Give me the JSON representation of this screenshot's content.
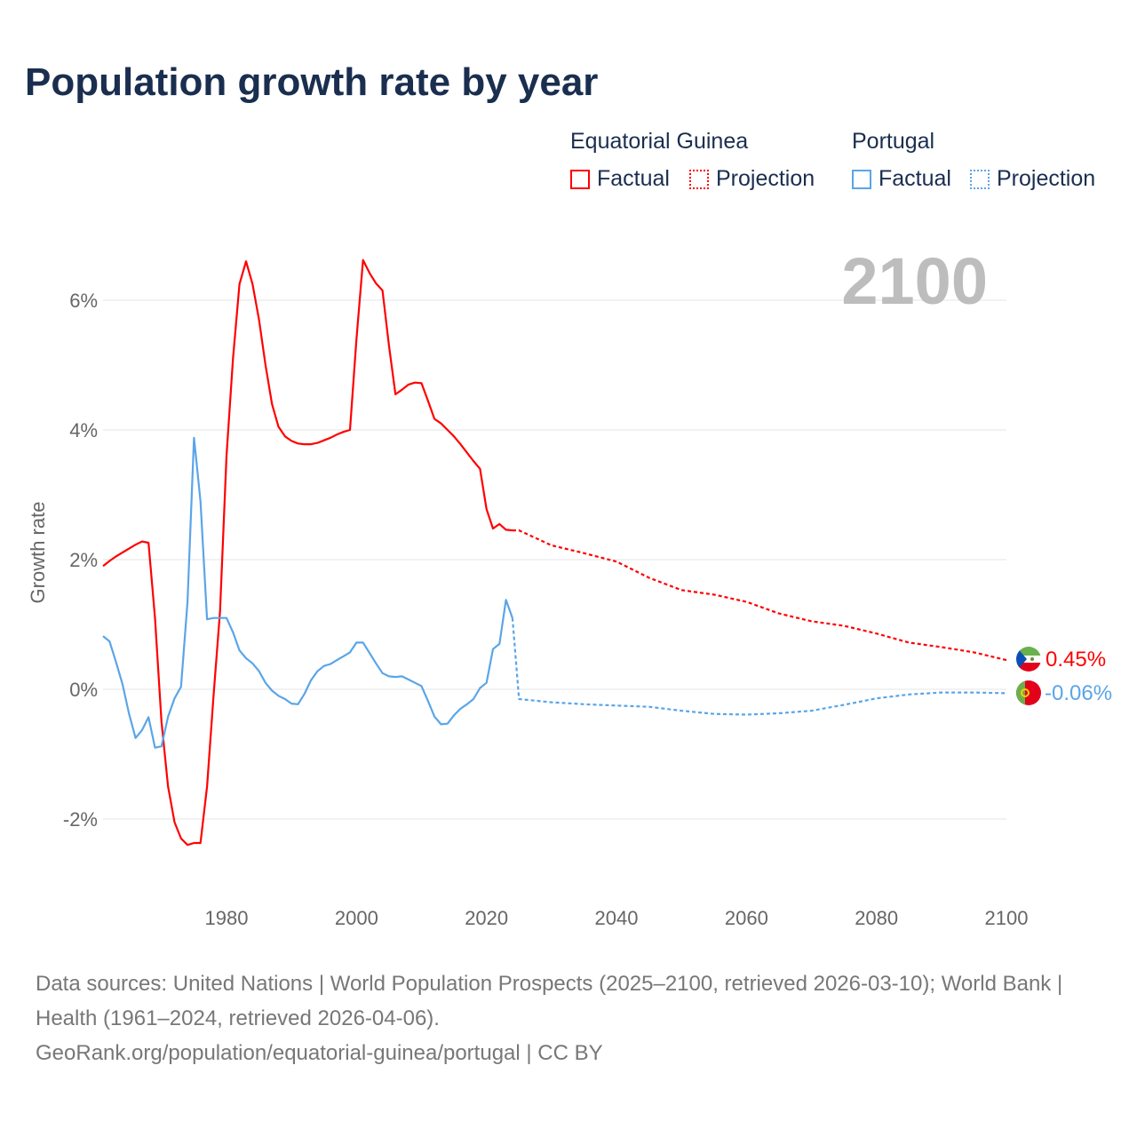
{
  "title": "Population growth rate by year",
  "legend": {
    "groups": [
      {
        "name": "Equatorial Guinea",
        "color": "#ff0000",
        "factual": "Factual",
        "projection": "Projection"
      },
      {
        "name": "Portugal",
        "color": "#5aa5e8",
        "factual": "Factual",
        "projection": "Projection"
      }
    ]
  },
  "footer": {
    "sources": "Data sources: United Nations | World Population Prospects (2025–2100, retrieved 2026-03-10); World Bank | Health (1961–2024, retrieved 2026-04-06).",
    "url": "GeoRank.org/population/equatorial-guinea/portugal | CC BY"
  },
  "chart_data": {
    "type": "line",
    "title": "Population growth rate by year",
    "ylabel": "Growth rate",
    "xlabel": "",
    "year_label": "2100",
    "xlim": [
      1961,
      2100
    ],
    "ylim": [
      -3,
      7
    ],
    "xticks": [
      1980,
      2000,
      2020,
      2040,
      2060,
      2080,
      2100
    ],
    "yticks": [
      -2,
      0,
      2,
      4,
      6
    ],
    "ytick_labels": [
      "-2%",
      "0%",
      "2%",
      "4%",
      "6%"
    ],
    "grid": true,
    "series": [
      {
        "name": "Equatorial Guinea",
        "color": "#ff0000",
        "end_label": "0.45%",
        "factual": {
          "x": [
            1961,
            1962,
            1963,
            1964,
            1965,
            1966,
            1967,
            1968,
            1969,
            1970,
            1971,
            1972,
            1973,
            1974,
            1975,
            1976,
            1977,
            1978,
            1979,
            1980,
            1981,
            1982,
            1983,
            1984,
            1985,
            1986,
            1987,
            1988,
            1989,
            1990,
            1991,
            1992,
            1993,
            1994,
            1995,
            1996,
            1997,
            1998,
            1999,
            2000,
            2001,
            2002,
            2003,
            2004,
            2005,
            2006,
            2007,
            2008,
            2009,
            2010,
            2011,
            2012,
            2013,
            2014,
            2015,
            2016,
            2017,
            2018,
            2019,
            2020,
            2021,
            2022,
            2023,
            2024
          ],
          "y": [
            1.9,
            1.98,
            2.05,
            2.11,
            2.17,
            2.23,
            2.28,
            2.26,
            1.1,
            -0.5,
            -1.5,
            -2.05,
            -2.3,
            -2.4,
            -2.37,
            -2.37,
            -1.5,
            -0.1,
            1.2,
            3.6,
            5.1,
            6.25,
            6.6,
            6.25,
            5.7,
            5.0,
            4.4,
            4.05,
            3.9,
            3.83,
            3.79,
            3.78,
            3.78,
            3.8,
            3.84,
            3.88,
            3.93,
            3.97,
            4.0,
            5.4,
            6.62,
            6.42,
            6.26,
            6.15,
            5.3,
            4.55,
            4.62,
            4.7,
            4.73,
            4.72,
            4.45,
            4.17,
            4.1,
            4.0,
            3.9,
            3.78,
            3.65,
            3.52,
            3.4,
            2.78,
            2.48,
            2.55,
            2.46,
            2.45
          ]
        },
        "projection": {
          "x": [
            2024,
            2025,
            2030,
            2035,
            2040,
            2045,
            2050,
            2055,
            2060,
            2065,
            2070,
            2075,
            2080,
            2085,
            2090,
            2095,
            2100
          ],
          "y": [
            2.45,
            2.45,
            2.22,
            2.1,
            1.97,
            1.72,
            1.53,
            1.46,
            1.35,
            1.17,
            1.05,
            0.98,
            0.86,
            0.72,
            0.65,
            0.57,
            0.45
          ]
        }
      },
      {
        "name": "Portugal",
        "color": "#5aa5e8",
        "end_label": "-0.06%",
        "factual": {
          "x": [
            1961,
            1962,
            1963,
            1964,
            1965,
            1966,
            1967,
            1968,
            1969,
            1970,
            1971,
            1972,
            1973,
            1974,
            1975,
            1976,
            1977,
            1978,
            1979,
            1980,
            1981,
            1982,
            1983,
            1984,
            1985,
            1986,
            1987,
            1988,
            1989,
            1990,
            1991,
            1992,
            1993,
            1994,
            1995,
            1996,
            1997,
            1998,
            1999,
            2000,
            2001,
            2002,
            2003,
            2004,
            2005,
            2006,
            2007,
            2008,
            2009,
            2010,
            2011,
            2012,
            2013,
            2014,
            2015,
            2016,
            2017,
            2018,
            2019,
            2020,
            2021,
            2022,
            2023,
            2024
          ],
          "y": [
            0.82,
            0.74,
            0.42,
            0.08,
            -0.38,
            -0.75,
            -0.63,
            -0.43,
            -0.9,
            -0.88,
            -0.42,
            -0.14,
            0.04,
            1.35,
            3.88,
            2.9,
            1.08,
            1.1,
            1.1,
            1.1,
            0.88,
            0.6,
            0.48,
            0.4,
            0.28,
            0.1,
            -0.02,
            -0.1,
            -0.15,
            -0.22,
            -0.23,
            -0.07,
            0.14,
            0.28,
            0.36,
            0.39,
            0.45,
            0.51,
            0.57,
            0.72,
            0.72,
            0.56,
            0.4,
            0.25,
            0.2,
            0.19,
            0.2,
            0.15,
            0.1,
            0.05,
            -0.18,
            -0.42,
            -0.54,
            -0.53,
            -0.4,
            -0.3,
            -0.23,
            -0.15,
            0.02,
            0.1,
            0.62,
            0.7,
            1.38,
            1.1
          ]
        },
        "projection": {
          "x": [
            2024,
            2025,
            2030,
            2035,
            2040,
            2045,
            2050,
            2055,
            2060,
            2065,
            2070,
            2075,
            2080,
            2085,
            2090,
            2095,
            2100
          ],
          "y": [
            1.1,
            -0.15,
            -0.2,
            -0.23,
            -0.25,
            -0.27,
            -0.33,
            -0.38,
            -0.39,
            -0.37,
            -0.33,
            -0.24,
            -0.14,
            -0.08,
            -0.05,
            -0.05,
            -0.06
          ]
        }
      }
    ]
  }
}
